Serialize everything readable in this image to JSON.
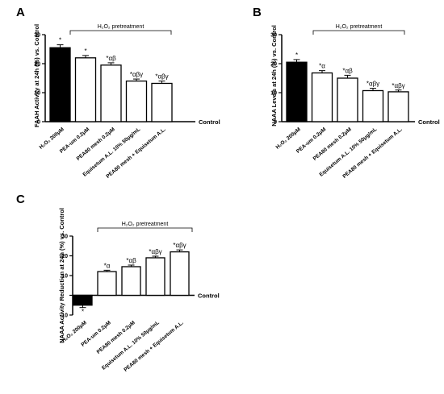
{
  "chart_data": [
    {
      "type": "bar",
      "panel_label": "A",
      "ylabel": "FAAH Activity at 24h (%) vs. Control",
      "control_label": "Control",
      "bracket_label": "H₂O₂ pretreatment",
      "categories": [
        "H₂O₂ 200μM",
        "PEA-um 0.2μM",
        "PEA80 mesh 0.2μM",
        "Equisetum A.L. 10% 50μg/mL",
        "PEA80 mesh + Equisetum A.L."
      ],
      "values": [
        25.5,
        22,
        19.5,
        14,
        13.2
      ],
      "errors": [
        1.0,
        0.8,
        0.8,
        0.7,
        0.8
      ],
      "bar_colors": [
        "#000000",
        "#ffffff",
        "#ffffff",
        "#ffffff",
        "#ffffff"
      ],
      "annotations": [
        "*",
        "*",
        "*αβ",
        "*αβγ",
        "*αβγ"
      ],
      "ylim": [
        0,
        30
      ],
      "yticks": [
        "0",
        "10",
        "20",
        "30"
      ]
    },
    {
      "type": "bar",
      "panel_label": "B",
      "ylabel": "NAAA Levels at 24h (%) vs. Control",
      "control_label": "Control",
      "bracket_label": "H₂O₂ pretreatment",
      "categories": [
        "H₂O₂ 200μM",
        "PEA-um 0.2μM",
        "PEA80 mesh 0.2μM",
        "Equisetum A.L. 10% 50μg/mL",
        "PEA80 mesh + Equisetum A.L."
      ],
      "values": [
        20.5,
        16.8,
        15,
        10.7,
        10.3
      ],
      "errors": [
        0.9,
        0.8,
        1.0,
        0.8,
        0.6
      ],
      "bar_colors": [
        "#000000",
        "#ffffff",
        "#ffffff",
        "#ffffff",
        "#ffffff"
      ],
      "annotations": [
        "*",
        "*α",
        "*αβ",
        "*αβγ",
        "*αβγ"
      ],
      "ylim": [
        0,
        30
      ],
      "yticks": [
        "0",
        "10",
        "20",
        "30"
      ]
    },
    {
      "type": "bar",
      "panel_label": "C",
      "ylabel": "NAAA Activity Reduction at 24h (%) vs. Control",
      "control_label": "Control",
      "bracket_label": "H₂O₂ pretreatment",
      "categories": [
        "H₂O₂ 200μM",
        "PEA-um 0.2μM",
        "PEA80 mesh 0.2μM",
        "Equisetum A.L. 10% 50μg/mL",
        "PEA80 mesh + Equisetum A.L."
      ],
      "values": [
        -5,
        12,
        14.5,
        19,
        22
      ],
      "errors": [
        1.2,
        0.7,
        0.8,
        0.8,
        1.0
      ],
      "bar_colors": [
        "#000000",
        "#ffffff",
        "#ffffff",
        "#ffffff",
        "#ffffff"
      ],
      "annotations": [
        "*",
        "*α",
        "*αβ",
        "*αβγ",
        "*αβγ"
      ],
      "ylim": [
        -10,
        30
      ],
      "yticks": [
        "-10",
        "10",
        "20",
        "30"
      ]
    }
  ]
}
